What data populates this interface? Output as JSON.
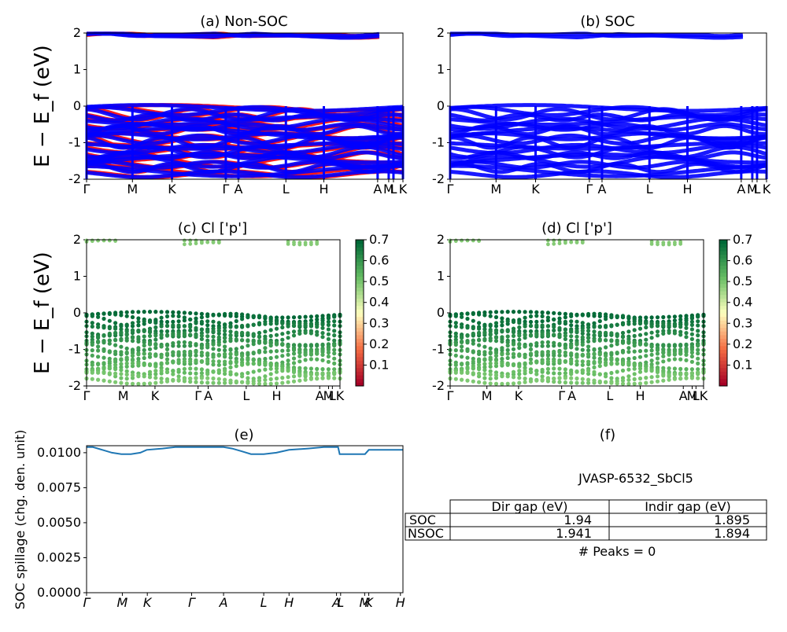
{
  "chart_data": [
    {
      "type": "scatter",
      "title": "(a) Non-SOC",
      "ylabel": "E − E_f (eV)",
      "ylim": [
        -2,
        2
      ],
      "yticks": [
        -2,
        -1,
        0,
        1,
        2
      ],
      "xlim": [
        0,
        1
      ],
      "kpath": [
        {
          "label": "Γ",
          "x": 0.0
        },
        {
          "label": "M",
          "x": 0.145
        },
        {
          "label": "K",
          "x": 0.27
        },
        {
          "label": "Γ",
          "x": 0.44
        },
        {
          "label": "A",
          "x": 0.48
        },
        {
          "label": "L",
          "x": 0.63
        },
        {
          "label": "H",
          "x": 0.75
        },
        {
          "label": "A",
          "x": 0.92
        },
        {
          "label": "M",
          "x": 0.955
        },
        {
          "label": "L",
          "x": 0.97
        },
        {
          "label": "K",
          "x": 1.0
        }
      ],
      "series": [
        {
          "color": "#ff0000",
          "x": [
            0,
            0.1,
            0.2,
            0.3,
            0.4,
            0.5,
            0.6,
            0.7,
            0.8,
            0.9,
            1.0
          ],
          "y": [
            -0.1,
            -0.35,
            -0.6,
            -0.85,
            -1.1,
            -1.35,
            -1.55,
            -1.75,
            -1.9,
            1.92,
            1.96
          ]
        },
        {
          "color": "#0000ff",
          "x": [
            0,
            0.1,
            0.2,
            0.3,
            0.4,
            0.5,
            0.6,
            0.7,
            0.8,
            0.9,
            1.0
          ],
          "y": [
            -0.05,
            -0.3,
            -0.55,
            -0.8,
            -1.05,
            -1.3,
            -1.5,
            -1.7,
            -1.85,
            1.9,
            1.95
          ]
        }
      ]
    },
    {
      "type": "scatter",
      "title": "(b) SOC",
      "ylim": [
        -2,
        2
      ],
      "yticks": [
        -2,
        -1,
        0,
        1,
        2
      ],
      "xlim": [
        0,
        1
      ],
      "kpath": [
        {
          "label": "Γ",
          "x": 0.0
        },
        {
          "label": "M",
          "x": 0.145
        },
        {
          "label": "K",
          "x": 0.27
        },
        {
          "label": "Γ",
          "x": 0.44
        },
        {
          "label": "A",
          "x": 0.48
        },
        {
          "label": "L",
          "x": 0.63
        },
        {
          "label": "H",
          "x": 0.75
        },
        {
          "label": "A",
          "x": 0.92
        },
        {
          "label": "M",
          "x": 0.955
        },
        {
          "label": "L",
          "x": 0.97
        },
        {
          "label": "K",
          "x": 1.0
        }
      ],
      "series": [
        {
          "color": "#0000ff",
          "x": [
            0,
            0.1,
            0.2,
            0.3,
            0.4,
            0.5,
            0.6,
            0.7,
            0.8,
            0.9,
            1.0
          ],
          "y": [
            -0.05,
            -0.3,
            -0.55,
            -0.8,
            -1.05,
            -1.3,
            -1.5,
            -1.7,
            -1.85,
            1.9,
            1.95
          ]
        }
      ]
    },
    {
      "type": "scatter",
      "title": "(c)  Cl ['p']",
      "ylabel": "E − E_f (eV)",
      "ylim": [
        -2,
        2
      ],
      "yticks": [
        -2,
        -1,
        0,
        1,
        2
      ],
      "xlim": [
        0,
        1
      ],
      "kpath": [
        {
          "label": "Γ",
          "x": 0.0
        },
        {
          "label": "M",
          "x": 0.145
        },
        {
          "label": "K",
          "x": 0.27
        },
        {
          "label": "Γ",
          "x": 0.44
        },
        {
          "label": "A",
          "x": 0.48
        },
        {
          "label": "L",
          "x": 0.63
        },
        {
          "label": "H",
          "x": 0.75
        },
        {
          "label": "A",
          "x": 0.92
        },
        {
          "label": "M",
          "x": 0.955
        },
        {
          "label": "L",
          "x": 0.97
        },
        {
          "label": "K",
          "x": 1.0
        }
      ],
      "colorbar": {
        "min": 0.0,
        "max": 0.7,
        "ticks": [
          "0.1",
          "0.2",
          "0.3",
          "0.4",
          "0.5",
          "0.6",
          "0.7"
        ],
        "colormap": "RdYlGn"
      },
      "weights_note_values": [
        0.65,
        0.55,
        0.45
      ]
    },
    {
      "type": "scatter",
      "title": "(d) Cl ['p']",
      "ylim": [
        -2,
        2
      ],
      "yticks": [
        -2,
        -1,
        0,
        1,
        2
      ],
      "xlim": [
        0,
        1
      ],
      "kpath": [
        {
          "label": "Γ",
          "x": 0.0
        },
        {
          "label": "M",
          "x": 0.145
        },
        {
          "label": "K",
          "x": 0.27
        },
        {
          "label": "Γ",
          "x": 0.44
        },
        {
          "label": "A",
          "x": 0.48
        },
        {
          "label": "L",
          "x": 0.63
        },
        {
          "label": "H",
          "x": 0.75
        },
        {
          "label": "A",
          "x": 0.92
        },
        {
          "label": "M",
          "x": 0.955
        },
        {
          "label": "L",
          "x": 0.97
        },
        {
          "label": "K",
          "x": 1.0
        }
      ],
      "colorbar": {
        "min": 0.0,
        "max": 0.7,
        "ticks": [
          "0.1",
          "0.2",
          "0.3",
          "0.4",
          "0.5",
          "0.6",
          "0.7"
        ],
        "colormap": "RdYlGn"
      }
    },
    {
      "type": "line",
      "title": "(e)",
      "ylabel": "SOC spillage (chg. den. unit)",
      "ylim": [
        0.0,
        0.0105
      ],
      "yticks": [
        "0.0000",
        "0.0025",
        "0.0050",
        "0.0075",
        "0.0100"
      ],
      "yticks_values": [
        0.0,
        0.0025,
        0.005,
        0.0075,
        0.01
      ],
      "xlim": [
        0,
        1
      ],
      "kpath": [
        {
          "label": "Γ",
          "x": 0.0
        },
        {
          "label": "M",
          "x": 0.113
        },
        {
          "label": "K",
          "x": 0.192
        },
        {
          "label": "Γ",
          "x": 0.332
        },
        {
          "label": "A",
          "x": 0.433
        },
        {
          "label": "L",
          "x": 0.56
        },
        {
          "label": "H",
          "x": 0.64
        },
        {
          "label": "A",
          "x": 0.79
        },
        {
          "label": "L",
          "x": 0.803
        },
        {
          "label": "M",
          "x": 0.879
        },
        {
          "label": "K",
          "x": 0.892
        },
        {
          "label": "H",
          "x": 0.992
        }
      ],
      "series": [
        {
          "color": "#1f77b4",
          "x": [
            0.0,
            0.02,
            0.05,
            0.08,
            0.11,
            0.14,
            0.17,
            0.19,
            0.24,
            0.28,
            0.332,
            0.38,
            0.433,
            0.46,
            0.49,
            0.52,
            0.56,
            0.6,
            0.64,
            0.7,
            0.75,
            0.785,
            0.795,
            0.8,
            0.85,
            0.88,
            0.892,
            0.95,
            1.0
          ],
          "y": [
            0.0104,
            0.0104,
            0.0102,
            0.01,
            0.0099,
            0.0099,
            0.01,
            0.0102,
            0.0103,
            0.0104,
            0.0104,
            0.0104,
            0.0104,
            0.0103,
            0.0101,
            0.0099,
            0.0099,
            0.01,
            0.0102,
            0.0103,
            0.0104,
            0.0104,
            0.0104,
            0.0099,
            0.0099,
            0.0099,
            0.0102,
            0.0102,
            0.0102
          ]
        }
      ]
    },
    {
      "type": "table",
      "title": "(f)",
      "subtitle": "JVASP-6532_SbCl5",
      "columns": [
        "Dir gap (eV)",
        "Indir gap (eV)"
      ],
      "rows": [
        {
          "label": "SOC",
          "values": [
            "1.94",
            "1.895"
          ]
        },
        {
          "label": "NSOC",
          "values": [
            "1.941",
            "1.894"
          ]
        }
      ],
      "footer": "# Peaks = 0"
    }
  ]
}
